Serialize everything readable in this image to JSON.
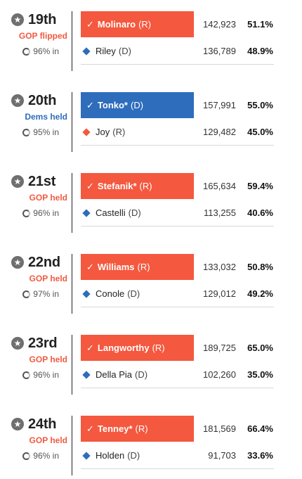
{
  "districts": [
    {
      "name": "19th",
      "status": "GOP flipped",
      "status_party": "gop",
      "reporting": "96% in",
      "winner": {
        "name": "Molinaro",
        "party": "(R)",
        "votes": "142,923",
        "pct": "51.1%",
        "color": "gop"
      },
      "loser": {
        "name": "Riley",
        "party": "(D)",
        "votes": "136,789",
        "pct": "48.9%",
        "color": "dem"
      }
    },
    {
      "name": "20th",
      "status": "Dems held",
      "status_party": "dem",
      "reporting": "95% in",
      "winner": {
        "name": "Tonko*",
        "party": "(D)",
        "votes": "157,991",
        "pct": "55.0%",
        "color": "dem"
      },
      "loser": {
        "name": "Joy",
        "party": "(R)",
        "votes": "129,482",
        "pct": "45.0%",
        "color": "gop"
      }
    },
    {
      "name": "21st",
      "status": "GOP held",
      "status_party": "gop",
      "reporting": "96% in",
      "winner": {
        "name": "Stefanik*",
        "party": "(R)",
        "votes": "165,634",
        "pct": "59.4%",
        "color": "gop"
      },
      "loser": {
        "name": "Castelli",
        "party": "(D)",
        "votes": "113,255",
        "pct": "40.6%",
        "color": "dem"
      }
    },
    {
      "name": "22nd",
      "status": "GOP held",
      "status_party": "gop",
      "reporting": "97% in",
      "winner": {
        "name": "Williams",
        "party": "(R)",
        "votes": "133,032",
        "pct": "50.8%",
        "color": "gop"
      },
      "loser": {
        "name": "Conole",
        "party": "(D)",
        "votes": "129,012",
        "pct": "49.2%",
        "color": "dem"
      }
    },
    {
      "name": "23rd",
      "status": "GOP held",
      "status_party": "gop",
      "reporting": "96% in",
      "winner": {
        "name": "Langworthy",
        "party": "(R)",
        "votes": "189,725",
        "pct": "65.0%",
        "color": "gop"
      },
      "loser": {
        "name": "Della Pia",
        "party": "(D)",
        "votes": "102,260",
        "pct": "35.0%",
        "color": "dem"
      }
    },
    {
      "name": "24th",
      "status": "GOP held",
      "status_party": "gop",
      "reporting": "96% in",
      "winner": {
        "name": "Tenney*",
        "party": "(R)",
        "votes": "181,569",
        "pct": "66.4%",
        "color": "gop"
      },
      "loser": {
        "name": "Holden",
        "party": "(D)",
        "votes": "91,703",
        "pct": "33.6%",
        "color": "dem"
      }
    }
  ],
  "icons": {
    "star": "star-icon",
    "reporting": "reporting-ring-icon",
    "check": "check-icon",
    "party_marker": "diamond-icon"
  },
  "colors": {
    "gop": "#f4583e",
    "dem": "#2e6cbc"
  }
}
